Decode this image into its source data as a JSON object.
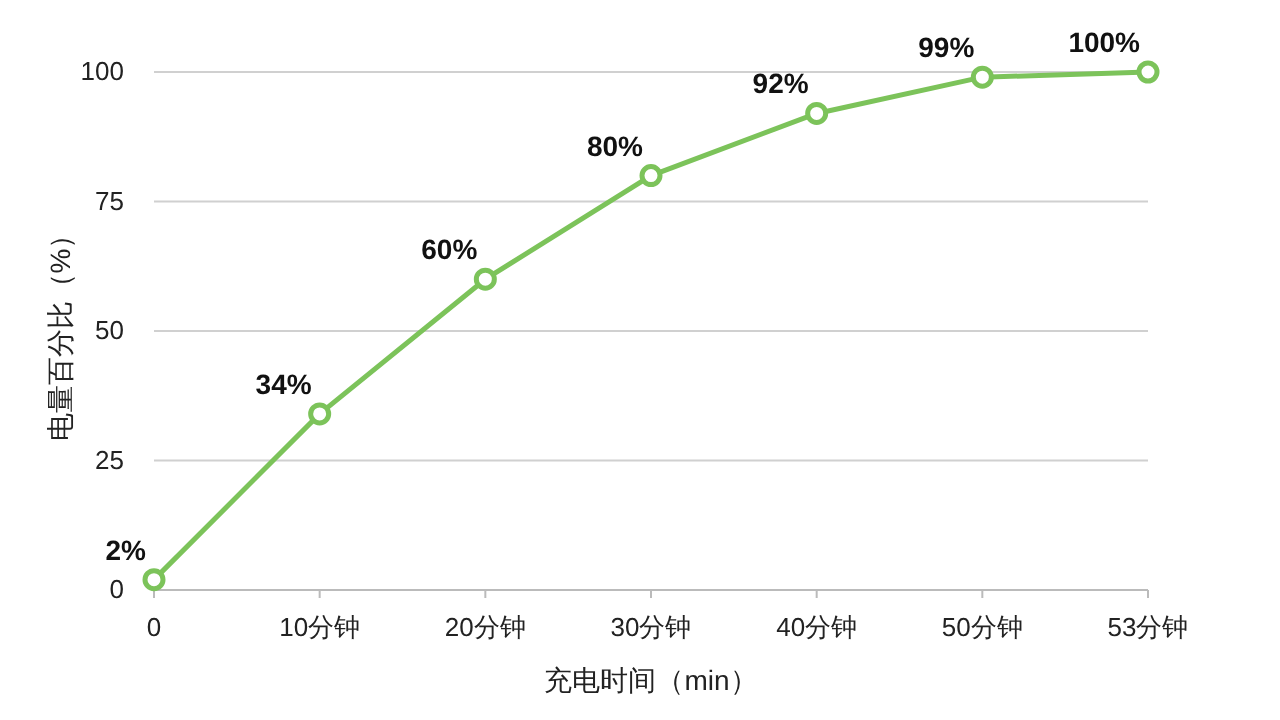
{
  "chart_data": {
    "type": "line",
    "xlabel": "充电时间（min）",
    "ylabel": "电量百分比（%）",
    "categories": [
      "0",
      "10分钟",
      "20分钟",
      "30分钟",
      "40分钟",
      "50分钟",
      "53分钟"
    ],
    "series": [
      {
        "color": "#7cc35a",
        "values": [
          2,
          34,
          60,
          80,
          92,
          99,
          100
        ],
        "value_labels": [
          "2%",
          "34%",
          "60%",
          "80%",
          "92%",
          "99%",
          "100%"
        ]
      }
    ],
    "ylim": [
      0,
      100
    ],
    "yticks": [
      0,
      25,
      50,
      75,
      100
    ],
    "grid": "y",
    "marker": "circle",
    "line_style": "solid"
  }
}
